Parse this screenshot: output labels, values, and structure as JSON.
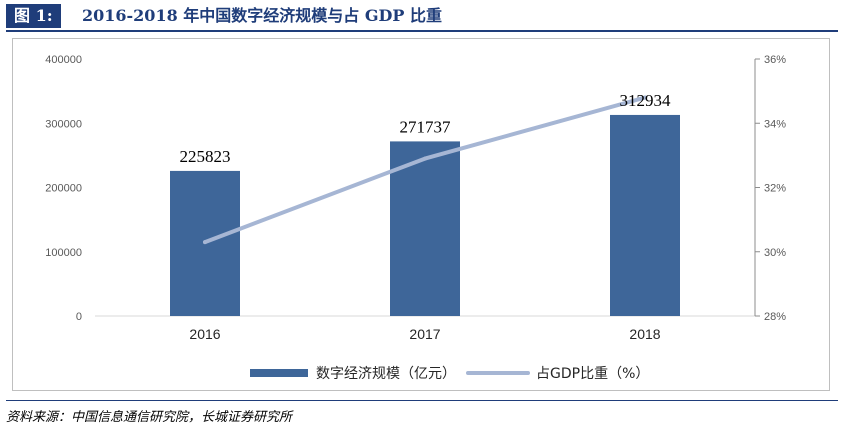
{
  "header": {
    "figure_label": "图 1:",
    "title": "2016-2018 年中国数字经济规模与占 GDP 比重"
  },
  "source": "资料来源：中国信息通信研究院，长城证券研究所",
  "colors": {
    "bar": "#3e6699",
    "line": "#a6b6d4",
    "title_bg": "#1f3d7a"
  },
  "chart_data": {
    "type": "bar",
    "categories": [
      "2016",
      "2017",
      "2018"
    ],
    "series": [
      {
        "name": "数字经济规模（亿元）",
        "type": "bar",
        "axis": "left",
        "values": [
          225823,
          271737,
          312934
        ],
        "labels": [
          "225823",
          "271737",
          "312934"
        ]
      },
      {
        "name": "占GDP比重（%）",
        "type": "line",
        "axis": "right",
        "values": [
          30.3,
          32.9,
          34.8
        ]
      }
    ],
    "y_left": {
      "min": 0,
      "max": 400000,
      "ticks": [
        0,
        100000,
        200000,
        300000,
        400000
      ],
      "tick_labels": [
        "0",
        "100000",
        "200000",
        "300000",
        "400000"
      ]
    },
    "y_right": {
      "min": 28,
      "max": 36,
      "ticks": [
        28,
        30,
        32,
        34,
        36
      ],
      "tick_labels": [
        "28%",
        "30%",
        "32%",
        "34%",
        "36%"
      ]
    },
    "grid": false,
    "legend": "bottom"
  }
}
